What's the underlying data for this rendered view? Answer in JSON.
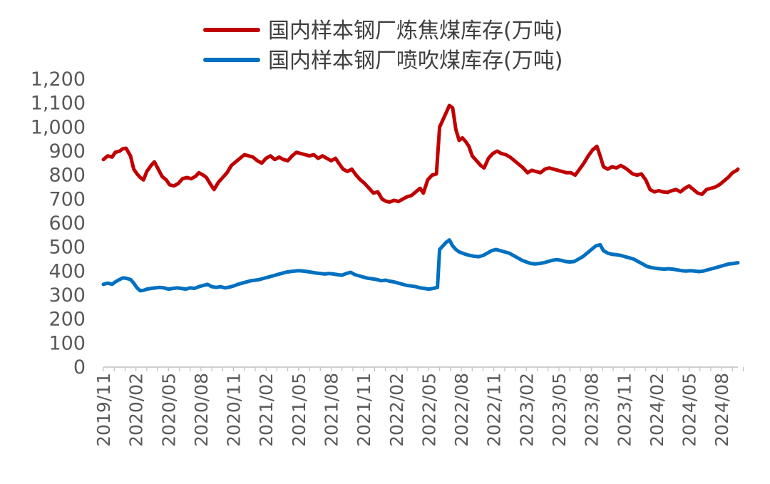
{
  "chart_data": {
    "type": "line",
    "ylim": [
      0,
      1200
    ],
    "y_ticks": [
      "0",
      "100",
      "200",
      "300",
      "400",
      "500",
      "600",
      "700",
      "800",
      "900",
      "1,000",
      "1,100",
      "1,200"
    ],
    "y_tick_values": [
      0,
      100,
      200,
      300,
      400,
      500,
      600,
      700,
      800,
      900,
      1000,
      1100,
      1200
    ],
    "x_ticks": [
      "2019/11",
      "2020/02",
      "2020/05",
      "2020/08",
      "2020/11",
      "2021/02",
      "2021/05",
      "2021/08",
      "2021/11",
      "2022/02",
      "2022/05",
      "2022/08",
      "2022/11",
      "2023/02",
      "2023/05",
      "2023/08",
      "2023/11",
      "2024/02",
      "2024/05",
      "2024/08"
    ],
    "xlim": [
      0,
      58.5
    ],
    "grid": false,
    "legend_position": "top",
    "series": [
      {
        "name": "国内样本钢厂炼焦煤库存(万吨)",
        "color": "#C00000",
        "points": [
          [
            0,
            865
          ],
          [
            0.4,
            880
          ],
          [
            0.8,
            875
          ],
          [
            1.1,
            895
          ],
          [
            1.5,
            900
          ],
          [
            1.8,
            910
          ],
          [
            2.1,
            912
          ],
          [
            2.5,
            880
          ],
          [
            2.8,
            825
          ],
          [
            3.1,
            805
          ],
          [
            3.4,
            790
          ],
          [
            3.7,
            780
          ],
          [
            4.0,
            815
          ],
          [
            4.4,
            840
          ],
          [
            4.7,
            855
          ],
          [
            5.0,
            830
          ],
          [
            5.4,
            795
          ],
          [
            5.8,
            780
          ],
          [
            6.1,
            760
          ],
          [
            6.5,
            755
          ],
          [
            6.9,
            765
          ],
          [
            7.3,
            785
          ],
          [
            7.7,
            790
          ],
          [
            8.1,
            785
          ],
          [
            8.5,
            795
          ],
          [
            8.8,
            810
          ],
          [
            9.2,
            800
          ],
          [
            9.5,
            790
          ],
          [
            9.9,
            760
          ],
          [
            10.2,
            740
          ],
          [
            10.6,
            770
          ],
          [
            11.0,
            790
          ],
          [
            11.4,
            810
          ],
          [
            11.8,
            840
          ],
          [
            12.2,
            855
          ],
          [
            12.6,
            870
          ],
          [
            13.0,
            885
          ],
          [
            13.4,
            880
          ],
          [
            13.8,
            875
          ],
          [
            14.2,
            860
          ],
          [
            14.6,
            850
          ],
          [
            15.0,
            870
          ],
          [
            15.4,
            880
          ],
          [
            15.8,
            865
          ],
          [
            16.2,
            875
          ],
          [
            16.6,
            865
          ],
          [
            17.0,
            860
          ],
          [
            17.4,
            880
          ],
          [
            17.8,
            895
          ],
          [
            18.2,
            890
          ],
          [
            18.6,
            885
          ],
          [
            19.0,
            880
          ],
          [
            19.4,
            885
          ],
          [
            19.8,
            870
          ],
          [
            20.2,
            880
          ],
          [
            20.6,
            870
          ],
          [
            21.0,
            860
          ],
          [
            21.4,
            870
          ],
          [
            21.7,
            850
          ],
          [
            22.1,
            825
          ],
          [
            22.5,
            815
          ],
          [
            22.9,
            825
          ],
          [
            23.3,
            800
          ],
          [
            23.7,
            780
          ],
          [
            24.1,
            765
          ],
          [
            24.5,
            745
          ],
          [
            24.9,
            725
          ],
          [
            25.3,
            730
          ],
          [
            25.7,
            700
          ],
          [
            26.1,
            690
          ],
          [
            26.4,
            688
          ],
          [
            26.8,
            695
          ],
          [
            27.2,
            690
          ],
          [
            27.6,
            700
          ],
          [
            28.0,
            710
          ],
          [
            28.4,
            715
          ],
          [
            28.8,
            730
          ],
          [
            29.2,
            745
          ],
          [
            29.5,
            725
          ],
          [
            29.9,
            780
          ],
          [
            30.3,
            800
          ],
          [
            30.7,
            805
          ],
          [
            31.0,
            1000
          ],
          [
            31.3,
            1030
          ],
          [
            31.6,
            1060
          ],
          [
            31.9,
            1090
          ],
          [
            32.2,
            1080
          ],
          [
            32.5,
            990
          ],
          [
            32.8,
            945
          ],
          [
            33.1,
            955
          ],
          [
            33.4,
            940
          ],
          [
            33.7,
            920
          ],
          [
            34.0,
            880
          ],
          [
            34.4,
            860
          ],
          [
            34.8,
            840
          ],
          [
            35.1,
            830
          ],
          [
            35.5,
            870
          ],
          [
            35.9,
            890
          ],
          [
            36.3,
            900
          ],
          [
            36.7,
            890
          ],
          [
            37.1,
            885
          ],
          [
            37.5,
            875
          ],
          [
            37.9,
            860
          ],
          [
            38.3,
            845
          ],
          [
            38.7,
            830
          ],
          [
            39.1,
            810
          ],
          [
            39.5,
            820
          ],
          [
            39.9,
            815
          ],
          [
            40.3,
            810
          ],
          [
            40.7,
            825
          ],
          [
            41.1,
            830
          ],
          [
            41.5,
            825
          ],
          [
            41.9,
            820
          ],
          [
            42.3,
            815
          ],
          [
            42.7,
            810
          ],
          [
            43.1,
            810
          ],
          [
            43.5,
            800
          ],
          [
            43.9,
            825
          ],
          [
            44.3,
            850
          ],
          [
            44.7,
            880
          ],
          [
            45.1,
            905
          ],
          [
            45.5,
            920
          ],
          [
            45.8,
            880
          ],
          [
            46.1,
            835
          ],
          [
            46.5,
            825
          ],
          [
            46.9,
            835
          ],
          [
            47.3,
            830
          ],
          [
            47.7,
            840
          ],
          [
            48.1,
            830
          ],
          [
            48.4,
            820
          ],
          [
            48.8,
            805
          ],
          [
            49.2,
            800
          ],
          [
            49.6,
            805
          ],
          [
            50.0,
            780
          ],
          [
            50.4,
            740
          ],
          [
            50.8,
            730
          ],
          [
            51.2,
            735
          ],
          [
            51.6,
            730
          ],
          [
            52.0,
            728
          ],
          [
            52.4,
            735
          ],
          [
            52.8,
            740
          ],
          [
            53.2,
            730
          ],
          [
            53.6,
            745
          ],
          [
            54.0,
            755
          ],
          [
            54.4,
            740
          ],
          [
            54.8,
            725
          ],
          [
            55.2,
            720
          ],
          [
            55.6,
            740
          ],
          [
            56.0,
            745
          ],
          [
            56.4,
            750
          ],
          [
            56.8,
            760
          ],
          [
            57.2,
            775
          ],
          [
            57.6,
            790
          ],
          [
            58.0,
            810
          ],
          [
            58.4,
            820
          ],
          [
            58.5,
            825
          ]
        ]
      },
      {
        "name": "国内样本钢厂喷吹煤库存(万吨)",
        "color": "#0070C0",
        "points": [
          [
            0,
            345
          ],
          [
            0.4,
            350
          ],
          [
            0.8,
            345
          ],
          [
            1.1,
            355
          ],
          [
            1.5,
            365
          ],
          [
            1.8,
            372
          ],
          [
            2.1,
            370
          ],
          [
            2.5,
            365
          ],
          [
            2.8,
            350
          ],
          [
            3.1,
            330
          ],
          [
            3.4,
            318
          ],
          [
            3.7,
            320
          ],
          [
            4.0,
            325
          ],
          [
            4.4,
            328
          ],
          [
            4.8,
            330
          ],
          [
            5.2,
            332
          ],
          [
            5.6,
            330
          ],
          [
            6.0,
            325
          ],
          [
            6.4,
            328
          ],
          [
            6.8,
            330
          ],
          [
            7.2,
            328
          ],
          [
            7.6,
            325
          ],
          [
            8.0,
            330
          ],
          [
            8.4,
            328
          ],
          [
            8.8,
            335
          ],
          [
            9.2,
            340
          ],
          [
            9.6,
            345
          ],
          [
            10.0,
            335
          ],
          [
            10.4,
            332
          ],
          [
            10.8,
            335
          ],
          [
            11.2,
            330
          ],
          [
            11.6,
            333
          ],
          [
            12.0,
            338
          ],
          [
            12.4,
            345
          ],
          [
            12.8,
            350
          ],
          [
            13.2,
            355
          ],
          [
            13.6,
            360
          ],
          [
            14.0,
            362
          ],
          [
            14.4,
            365
          ],
          [
            14.8,
            370
          ],
          [
            15.2,
            375
          ],
          [
            15.6,
            380
          ],
          [
            16.0,
            385
          ],
          [
            16.4,
            390
          ],
          [
            16.8,
            395
          ],
          [
            17.2,
            398
          ],
          [
            17.6,
            400
          ],
          [
            18.0,
            402
          ],
          [
            18.4,
            400
          ],
          [
            18.8,
            398
          ],
          [
            19.2,
            395
          ],
          [
            19.6,
            392
          ],
          [
            20.0,
            390
          ],
          [
            20.4,
            388
          ],
          [
            20.8,
            390
          ],
          [
            21.2,
            388
          ],
          [
            21.6,
            385
          ],
          [
            22.0,
            383
          ],
          [
            22.4,
            390
          ],
          [
            22.8,
            395
          ],
          [
            23.2,
            385
          ],
          [
            23.6,
            380
          ],
          [
            24.0,
            375
          ],
          [
            24.4,
            370
          ],
          [
            24.8,
            368
          ],
          [
            25.2,
            365
          ],
          [
            25.6,
            360
          ],
          [
            26.0,
            362
          ],
          [
            26.4,
            358
          ],
          [
            26.8,
            355
          ],
          [
            27.2,
            350
          ],
          [
            27.6,
            345
          ],
          [
            28.0,
            340
          ],
          [
            28.4,
            338
          ],
          [
            28.8,
            335
          ],
          [
            29.2,
            330
          ],
          [
            29.6,
            328
          ],
          [
            30.0,
            325
          ],
          [
            30.4,
            328
          ],
          [
            30.8,
            332
          ],
          [
            31.0,
            490
          ],
          [
            31.3,
            505
          ],
          [
            31.6,
            520
          ],
          [
            31.9,
            530
          ],
          [
            32.2,
            505
          ],
          [
            32.5,
            490
          ],
          [
            32.8,
            480
          ],
          [
            33.1,
            475
          ],
          [
            33.4,
            470
          ],
          [
            33.8,
            465
          ],
          [
            34.2,
            462
          ],
          [
            34.6,
            460
          ],
          [
            35.0,
            465
          ],
          [
            35.4,
            475
          ],
          [
            35.8,
            485
          ],
          [
            36.2,
            490
          ],
          [
            36.6,
            485
          ],
          [
            37.0,
            480
          ],
          [
            37.4,
            475
          ],
          [
            37.8,
            465
          ],
          [
            38.2,
            455
          ],
          [
            38.6,
            445
          ],
          [
            39.0,
            438
          ],
          [
            39.4,
            432
          ],
          [
            39.8,
            430
          ],
          [
            40.2,
            432
          ],
          [
            40.6,
            435
          ],
          [
            41.0,
            440
          ],
          [
            41.4,
            445
          ],
          [
            41.8,
            448
          ],
          [
            42.2,
            445
          ],
          [
            42.6,
            440
          ],
          [
            43.0,
            438
          ],
          [
            43.4,
            440
          ],
          [
            43.8,
            450
          ],
          [
            44.2,
            460
          ],
          [
            44.6,
            475
          ],
          [
            45.0,
            490
          ],
          [
            45.4,
            505
          ],
          [
            45.8,
            510
          ],
          [
            46.1,
            485
          ],
          [
            46.5,
            475
          ],
          [
            46.9,
            470
          ],
          [
            47.3,
            468
          ],
          [
            47.7,
            465
          ],
          [
            48.1,
            460
          ],
          [
            48.5,
            455
          ],
          [
            48.9,
            450
          ],
          [
            49.3,
            440
          ],
          [
            49.7,
            430
          ],
          [
            50.1,
            420
          ],
          [
            50.5,
            415
          ],
          [
            50.9,
            412
          ],
          [
            51.3,
            410
          ],
          [
            51.7,
            408
          ],
          [
            52.1,
            410
          ],
          [
            52.5,
            408
          ],
          [
            52.9,
            405
          ],
          [
            53.3,
            402
          ],
          [
            53.7,
            400
          ],
          [
            54.1,
            402
          ],
          [
            54.5,
            400
          ],
          [
            54.9,
            398
          ],
          [
            55.3,
            400
          ],
          [
            55.7,
            405
          ],
          [
            56.1,
            410
          ],
          [
            56.5,
            415
          ],
          [
            56.9,
            420
          ],
          [
            57.3,
            425
          ],
          [
            57.7,
            430
          ],
          [
            58.1,
            432
          ],
          [
            58.5,
            435
          ]
        ]
      }
    ]
  }
}
